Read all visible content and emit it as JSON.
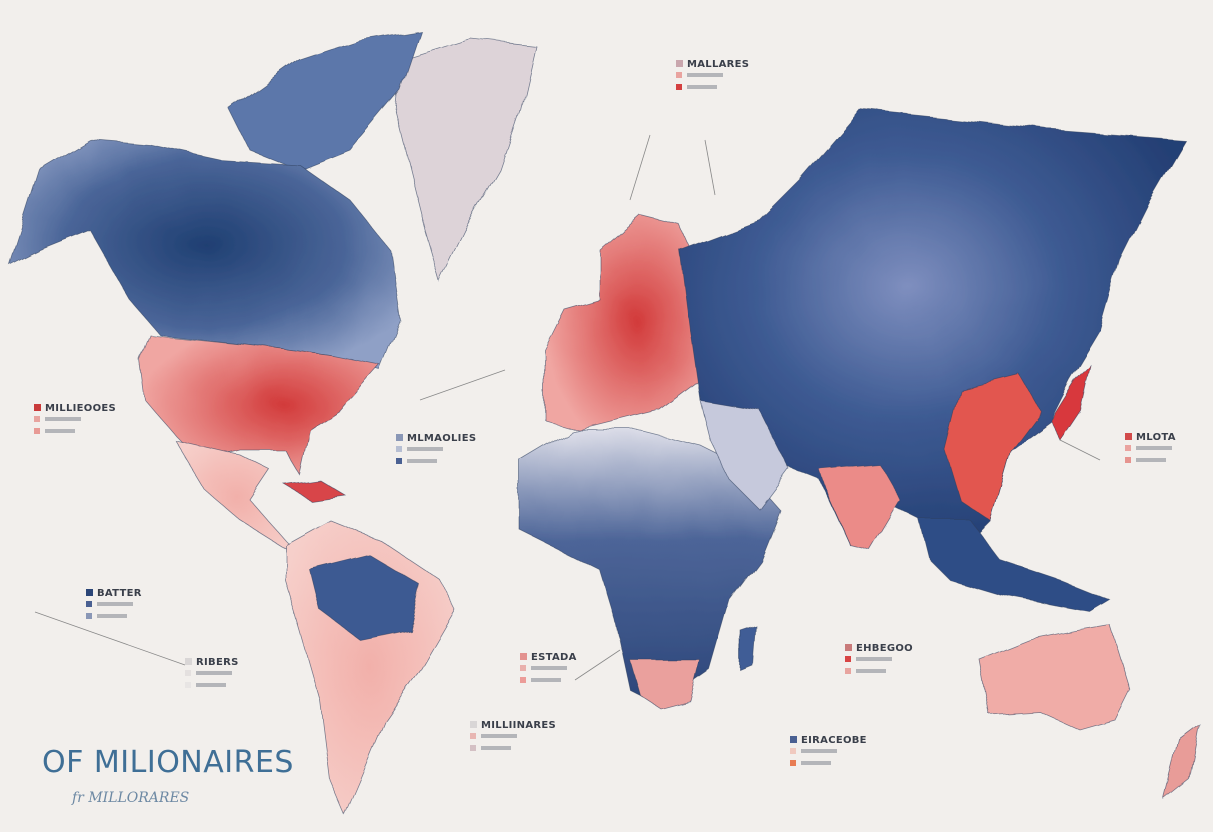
{
  "title": "OF MILIONAIRES",
  "subtitle": "fr MILLORARES",
  "legends": [
    {
      "label": "MALLARES"
    },
    {
      "label": "MILLIEOOES"
    },
    {
      "label": "MLMAOLIES"
    },
    {
      "label": "MLOTA"
    },
    {
      "label": "BATTER"
    },
    {
      "label": "RIBERS"
    },
    {
      "label": "ESTADA"
    },
    {
      "label": "EHBEGOO"
    },
    {
      "label": "MILLIINARES"
    },
    {
      "label": "EIRACEOBE"
    }
  ]
}
